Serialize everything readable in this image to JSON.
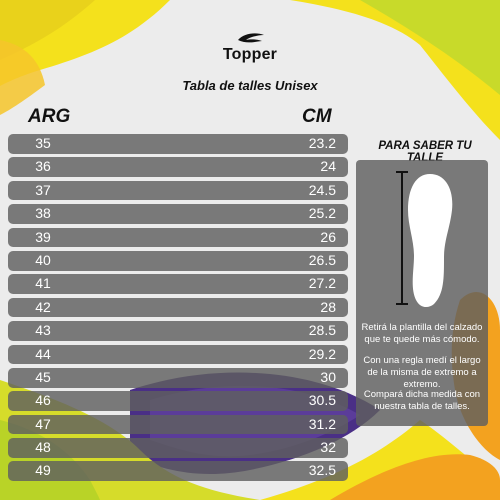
{
  "brand": {
    "name": "Topper"
  },
  "title": "Tabla de talles Unisex",
  "headers": {
    "arg": "ARG",
    "cm": "CM"
  },
  "rows": [
    {
      "arg": "35",
      "cm": "23.2"
    },
    {
      "arg": "36",
      "cm": "24"
    },
    {
      "arg": "37",
      "cm": "24.5"
    },
    {
      "arg": "38",
      "cm": "25.2"
    },
    {
      "arg": "39",
      "cm": "26"
    },
    {
      "arg": "40",
      "cm": "26.5"
    },
    {
      "arg": "41",
      "cm": "27.2"
    },
    {
      "arg": "42",
      "cm": "28"
    },
    {
      "arg": "43",
      "cm": "28.5"
    },
    {
      "arg": "44",
      "cm": "29.2"
    },
    {
      "arg": "45",
      "cm": "30"
    },
    {
      "arg": "46",
      "cm": "30.5"
    },
    {
      "arg": "47",
      "cm": "31.2"
    },
    {
      "arg": "48",
      "cm": "32"
    },
    {
      "arg": "49",
      "cm": "32.5"
    }
  ],
  "side": {
    "title": "PARA SABER TU TALLE",
    "instructions": [
      "Retirá la plantilla del calzado que te quede más cómodo.",
      "Con una regla medí el largo de la misma de extremo a extremo.",
      "Compará dicha medida con nuestra tabla de talles."
    ]
  },
  "colors": {
    "yellow": "#f4e11c",
    "green": "#b9d327",
    "orange": "#f3a21f",
    "purple": "#4a2f86",
    "row_bg": "#5f5f5f"
  }
}
